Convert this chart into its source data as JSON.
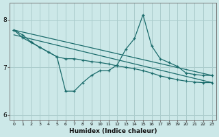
{
  "xlabel": "Humidex (Indice chaleur)",
  "background_color": "#cce8e8",
  "grid_color": "#aacccc",
  "line_color": "#1a6b6b",
  "xlim": [
    -0.5,
    23.5
  ],
  "ylim": [
    5.9,
    8.35
  ],
  "yticks": [
    6,
    7,
    8
  ],
  "xticks": [
    0,
    1,
    2,
    3,
    4,
    5,
    6,
    7,
    8,
    9,
    10,
    11,
    12,
    13,
    14,
    15,
    16,
    17,
    18,
    19,
    20,
    21,
    22,
    23
  ],
  "series1_x": [
    0,
    1,
    2,
    3,
    4,
    5,
    6,
    7,
    8,
    9,
    10,
    11,
    12,
    13,
    14,
    15,
    16,
    17,
    18,
    19,
    20,
    21,
    22,
    23
  ],
  "series1_y": [
    7.78,
    7.68,
    7.53,
    7.42,
    7.32,
    7.22,
    6.5,
    6.5,
    6.68,
    6.83,
    6.93,
    6.93,
    7.05,
    7.38,
    7.6,
    8.1,
    7.45,
    7.18,
    7.1,
    7.02,
    6.88,
    6.85,
    6.83,
    6.83
  ],
  "series2_x": [
    0,
    1,
    2,
    3,
    4,
    5,
    6,
    7,
    8,
    9,
    10,
    11,
    12,
    13,
    14,
    15,
    16,
    17,
    18,
    19,
    20,
    21,
    22,
    23
  ],
  "series2_y": [
    7.78,
    7.62,
    7.52,
    7.42,
    7.32,
    7.22,
    7.18,
    7.18,
    7.15,
    7.12,
    7.1,
    7.07,
    7.03,
    7.0,
    6.97,
    6.93,
    6.88,
    6.82,
    6.78,
    6.74,
    6.71,
    6.69,
    6.68,
    6.68
  ],
  "trend1_x": [
    0,
    23
  ],
  "trend1_y": [
    7.78,
    6.83
  ],
  "trend2_x": [
    0,
    23
  ],
  "trend2_y": [
    7.68,
    6.68
  ]
}
